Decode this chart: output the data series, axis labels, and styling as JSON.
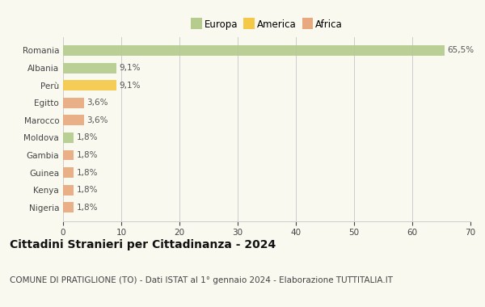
{
  "categories": [
    "Romania",
    "Albania",
    "Perù",
    "Egitto",
    "Marocco",
    "Moldova",
    "Gambia",
    "Guinea",
    "Kenya",
    "Nigeria"
  ],
  "values": [
    65.5,
    9.1,
    9.1,
    3.6,
    3.6,
    1.8,
    1.8,
    1.8,
    1.8,
    1.8
  ],
  "labels": [
    "65,5%",
    "9,1%",
    "9,1%",
    "3,6%",
    "3,6%",
    "1,8%",
    "1,8%",
    "1,8%",
    "1,8%",
    "1,8%"
  ],
  "colors": [
    "#b5cc8e",
    "#b5cc8e",
    "#f5c948",
    "#e8a97e",
    "#e8a97e",
    "#b5cc8e",
    "#e8a97e",
    "#e8a97e",
    "#e8a97e",
    "#e8a97e"
  ],
  "legend_labels": [
    "Europa",
    "America",
    "Africa"
  ],
  "legend_colors": [
    "#b5cc8e",
    "#f5c948",
    "#e8a97e"
  ],
  "xlim": [
    0,
    70
  ],
  "xticks": [
    0,
    10,
    20,
    30,
    40,
    50,
    60,
    70
  ],
  "title": "Cittadini Stranieri per Cittadinanza - 2024",
  "subtitle": "COMUNE DI PRATIGLIONE (TO) - Dati ISTAT al 1° gennaio 2024 - Elaborazione TUTTITALIA.IT",
  "title_fontsize": 10,
  "subtitle_fontsize": 7.5,
  "bar_height": 0.6,
  "background_color": "#f9f9f0",
  "grid_color": "#cccccc",
  "label_fontsize": 7.5,
  "tick_fontsize": 7.5,
  "ytick_fontsize": 7.5
}
